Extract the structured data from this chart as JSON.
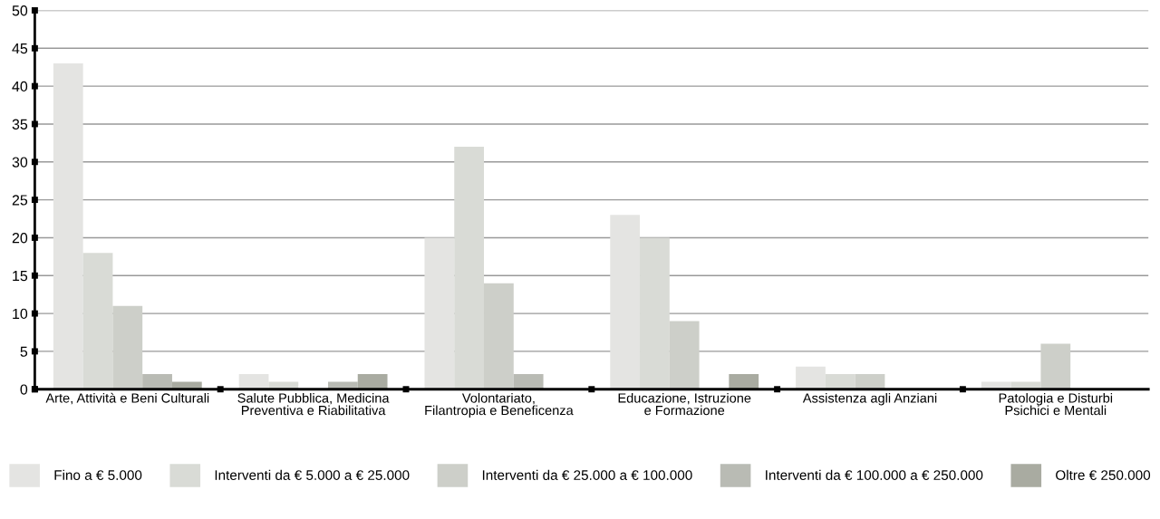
{
  "chart_data": {
    "type": "bar",
    "categories": [
      "Arte, Attività e Beni Culturali",
      "Salute Pubblica, Medicina Preventiva e Riabilitativa",
      "Volontariato, Filantropia e Beneficenza",
      "Educazione, Istruzione e Formazione",
      "Assistenza agli Anziani",
      "Patologia e Disturbi Psichici e Mentali"
    ],
    "series": [
      {
        "name": "Fino a € 5.000",
        "color": "#e4e4e2",
        "values": [
          43,
          2,
          20,
          23,
          3,
          1
        ]
      },
      {
        "name": "Interventi da € 5.000 a € 25.000",
        "color": "#d9dbd6",
        "values": [
          18,
          1,
          32,
          20,
          2,
          1
        ]
      },
      {
        "name": "Interventi da € 25.000 a € 100.000",
        "color": "#cdcfc9",
        "values": [
          11,
          0,
          14,
          9,
          2,
          6
        ]
      },
      {
        "name": "Interventi da € 100.000 a € 250.000",
        "color": "#b9bbb4",
        "values": [
          2,
          1,
          2,
          0,
          0,
          0
        ]
      },
      {
        "name": "Oltre € 250.000",
        "color": "#a9aba1",
        "values": [
          1,
          2,
          0,
          2,
          0,
          0
        ]
      }
    ],
    "ylim": [
      0,
      50
    ],
    "yticks": [
      0,
      5,
      10,
      15,
      20,
      25,
      30,
      35,
      40,
      45,
      50
    ],
    "grid": "y",
    "legend": "bottom"
  }
}
